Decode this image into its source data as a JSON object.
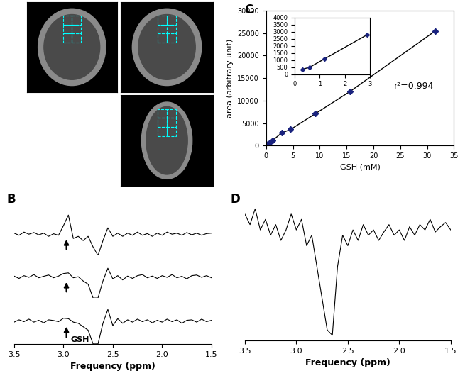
{
  "chart_data": [
    {
      "label": "A",
      "type": "image"
    },
    {
      "label": "B",
      "type": "line",
      "x_label": "Frequency (ppm)",
      "color": "#000000",
      "x": [
        3.5,
        3.45,
        3.4,
        3.35,
        3.3,
        3.25,
        3.2,
        3.15,
        3.1,
        3.05,
        3.0,
        2.95,
        2.9,
        2.85,
        2.8,
        2.75,
        2.7,
        2.65,
        2.6,
        2.55,
        2.5,
        2.45,
        2.4,
        2.35,
        2.3,
        2.25,
        2.2,
        2.15,
        2.1,
        2.05,
        2.0,
        1.95,
        1.9,
        1.85,
        1.8,
        1.75,
        1.7,
        1.65,
        1.6,
        1.55,
        1.5
      ],
      "xlim": [
        3.5,
        1.5
      ],
      "xticks": [
        3.5,
        {
          "value": 3,
          "label": "3.0"
        },
        2.5,
        {
          "value": 2,
          "label": "2.0"
        },
        1.5
      ],
      "tick_labels": "x",
      "arrow_x": 2.97,
      "annotation": "GSH",
      "series": [
        {
          "ylim": [
            -10,
            10
          ],
          "values": [
            0.5,
            -0.5,
            1,
            0,
            0.8,
            -0.3,
            0.5,
            -1,
            0.2,
            -0.5,
            4,
            9,
            -2,
            -1,
            -3,
            -1,
            -6,
            -10,
            -3,
            3,
            -1,
            0.5,
            -1,
            0.5,
            -0.5,
            1,
            -0.5,
            0.3,
            -1,
            0.5,
            -0.5,
            1,
            0,
            0.5,
            -0.5,
            0.8,
            -0.3,
            0.5,
            -0.5,
            0.3,
            0.5
          ]
        },
        {
          "ylim": [
            -10,
            10
          ],
          "values": [
            0.3,
            -0.8,
            0.5,
            -0.3,
            1,
            -0.5,
            0.2,
            0.8,
            -0.5,
            0.3,
            1.5,
            1.8,
            -0.5,
            0,
            -2,
            -3.5,
            -10,
            -10,
            -2,
            4,
            -1,
            0.5,
            -1.5,
            0.3,
            -0.8,
            0.5,
            1,
            -0.5,
            0.3,
            -0.8,
            0.5,
            -0.3,
            1,
            -0.5,
            0.2,
            -1,
            0.5,
            0.8,
            -0.3,
            0.5,
            -0.5
          ]
        },
        {
          "ylim": [
            -10,
            10
          ],
          "values": [
            -0.5,
            0.5,
            -0.3,
            0.8,
            -0.5,
            0.3,
            -0.8,
            0.5,
            0.2,
            -0.3,
            1.2,
            1,
            -0.5,
            -1,
            -2.5,
            -4,
            -10,
            -10,
            -1,
            5,
            -2,
            1,
            -1,
            0.5,
            -0.5,
            0.8,
            -0.3,
            0.5,
            -0.8,
            0.3,
            -0.5,
            0.8,
            -0.3,
            0.5,
            -1,
            0.3,
            0.5,
            -0.5,
            0.8,
            -0.3,
            0.3
          ]
        }
      ]
    },
    {
      "label": "C",
      "type": "line",
      "x_label": "GSH (mM)",
      "y_label": "area (arbitrary unit)",
      "color": "#1a237e",
      "marker": "D",
      "annotation": "r²=0.994",
      "x": [
        0.3,
        0.6,
        1.2,
        2.9,
        4.6,
        9.2,
        15.6,
        31.5
      ],
      "values": [
        350,
        500,
        1100,
        2800,
        3600,
        7100,
        12000,
        25500
      ],
      "xlim": [
        0,
        35
      ],
      "xticks": [
        0,
        5,
        10,
        15,
        20,
        25,
        30,
        35
      ],
      "ylim": [
        0,
        30000
      ],
      "yticks": [
        0,
        5000,
        10000,
        15000,
        20000,
        25000,
        30000
      ],
      "inset": {
        "x": [
          0.3,
          0.6,
          1.2,
          2.9
        ],
        "values": [
          350,
          500,
          1100,
          2800
        ],
        "xlim": [
          0,
          3
        ],
        "xticks": [
          0,
          1,
          2,
          3
        ],
        "ylim": [
          0,
          4000
        ],
        "yticks": [
          0,
          500,
          1000,
          1500,
          2000,
          2500,
          3000,
          3500,
          4000
        ]
      }
    },
    {
      "label": "D",
      "type": "line",
      "x_label": "Frequency (ppm)",
      "color": "#000000",
      "x": [
        3.5,
        3.45,
        3.4,
        3.35,
        3.3,
        3.25,
        3.2,
        3.15,
        3.1,
        3.05,
        3.0,
        2.95,
        2.9,
        2.85,
        2.8,
        2.75,
        2.7,
        2.65,
        2.6,
        2.55,
        2.5,
        2.45,
        2.4,
        2.35,
        2.3,
        2.25,
        2.2,
        2.15,
        2.1,
        2.05,
        2.0,
        1.95,
        1.9,
        1.85,
        1.8,
        1.75,
        1.7,
        1.65,
        1.6,
        1.55,
        1.5
      ],
      "values": [
        2,
        1,
        2.5,
        0.5,
        1.5,
        0,
        1,
        -0.5,
        0.5,
        2,
        0.5,
        1.5,
        -1,
        0,
        -3,
        -6,
        -9,
        -9.5,
        -3,
        0,
        -1,
        0.5,
        -0.5,
        1,
        0,
        0.5,
        -0.5,
        0.3,
        1,
        0,
        0.5,
        -0.5,
        0.8,
        0,
        1,
        0.5,
        1.5,
        0.3,
        0.8,
        1.2,
        0.5
      ],
      "xlim": [
        3.5,
        1.5
      ],
      "xticks": [
        3.5,
        {
          "value": 3,
          "label": "3.0"
        },
        2.5,
        {
          "value": 2,
          "label": "2.0"
        },
        1.5
      ],
      "ylim": [
        -10,
        4
      ],
      "tick_labels": "x"
    }
  ]
}
